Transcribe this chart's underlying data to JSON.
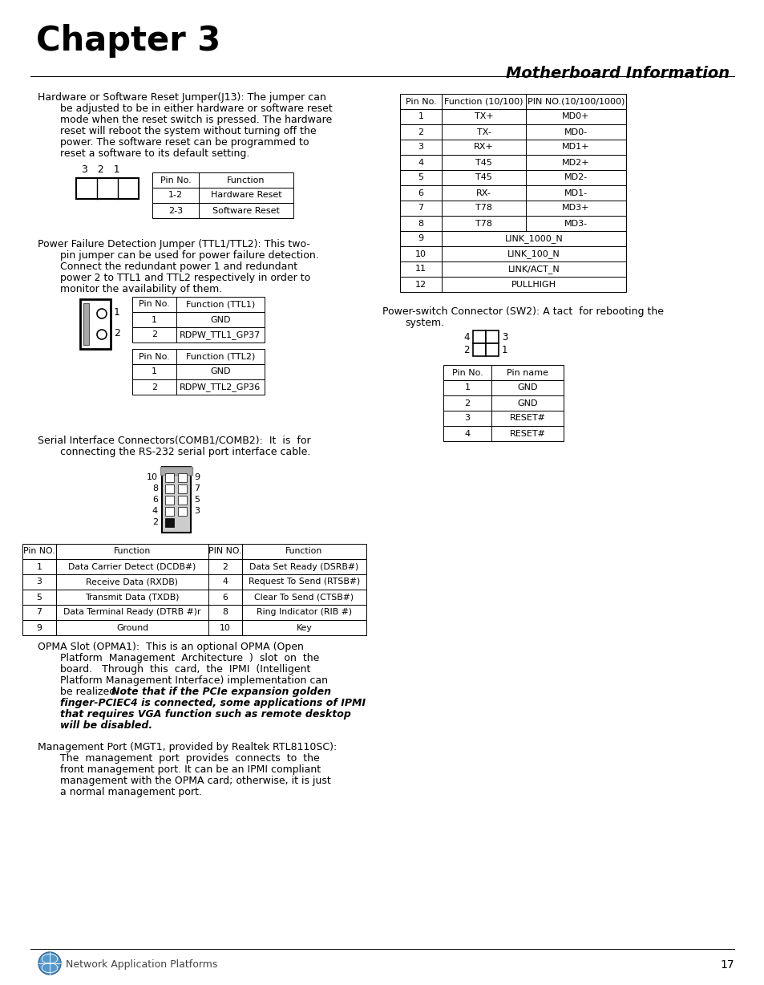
{
  "page_bg": "#ffffff",
  "chapter_title": "Chapter 3",
  "section_title": "Motherboard Information",
  "page_number": "17",
  "footer_text": "Network Application Platforms",
  "table_j13_headers": [
    "Pin No.",
    "Function"
  ],
  "table_j13_rows": [
    [
      "1-2",
      "Hardware Reset"
    ],
    [
      "2-3",
      "Software Reset"
    ]
  ],
  "table_ttl1_headers": [
    "Pin No.",
    "Function (TTL1)"
  ],
  "table_ttl1_rows": [
    [
      "1",
      "GND"
    ],
    [
      "2",
      "RDPW_TTL1_GP37"
    ]
  ],
  "table_ttl2_headers": [
    "Pin No.",
    "Function (TTL2)"
  ],
  "table_ttl2_rows": [
    [
      "1",
      "GND"
    ],
    [
      "2",
      "RDPW_TTL2_GP36"
    ]
  ],
  "table_serial_headers": [
    "Pin NO.",
    "Function",
    "PIN NO.",
    "Function"
  ],
  "table_serial_rows": [
    [
      "1",
      "Data Carrier Detect (DCDB#)",
      "2",
      "Data Set Ready (DSRB#)"
    ],
    [
      "3",
      "Receive Data (RXDB)",
      "4",
      "Request To Send (RTSB#)"
    ],
    [
      "5",
      "Transmit Data (TXDB)",
      "6",
      "Clear To Send (CTSB#)"
    ],
    [
      "7",
      "Data Terminal Ready (DTRB #)r",
      "8",
      "Ring Indicator (RIB #)"
    ],
    [
      "9",
      "Ground",
      "10",
      "Key"
    ]
  ],
  "table_mii_headers": [
    "Pin No.",
    "Function (10/100)",
    "PIN NO.(10/100/1000)"
  ],
  "table_mii_rows": [
    [
      "1",
      "TX+",
      "MD0+"
    ],
    [
      "2",
      "TX-",
      "MD0-"
    ],
    [
      "3",
      "RX+",
      "MD1+"
    ],
    [
      "4",
      "T45",
      "MD2+"
    ],
    [
      "5",
      "T45",
      "MD2-"
    ],
    [
      "6",
      "RX-",
      "MD1-"
    ],
    [
      "7",
      "T78",
      "MD3+"
    ],
    [
      "8",
      "T78",
      "MD3-"
    ],
    [
      "9",
      "LINK_1000_N",
      ""
    ],
    [
      "10",
      "LINK_100_N",
      ""
    ],
    [
      "11",
      "LINK/ACT_N",
      ""
    ],
    [
      "12",
      "PULLHIGH",
      ""
    ]
  ],
  "table_sw2_headers": [
    "Pin No.",
    "Pin name"
  ],
  "table_sw2_rows": [
    [
      "1",
      "GND"
    ],
    [
      "2",
      "GND"
    ],
    [
      "3",
      "RESET#"
    ],
    [
      "4",
      "RESET#"
    ]
  ]
}
